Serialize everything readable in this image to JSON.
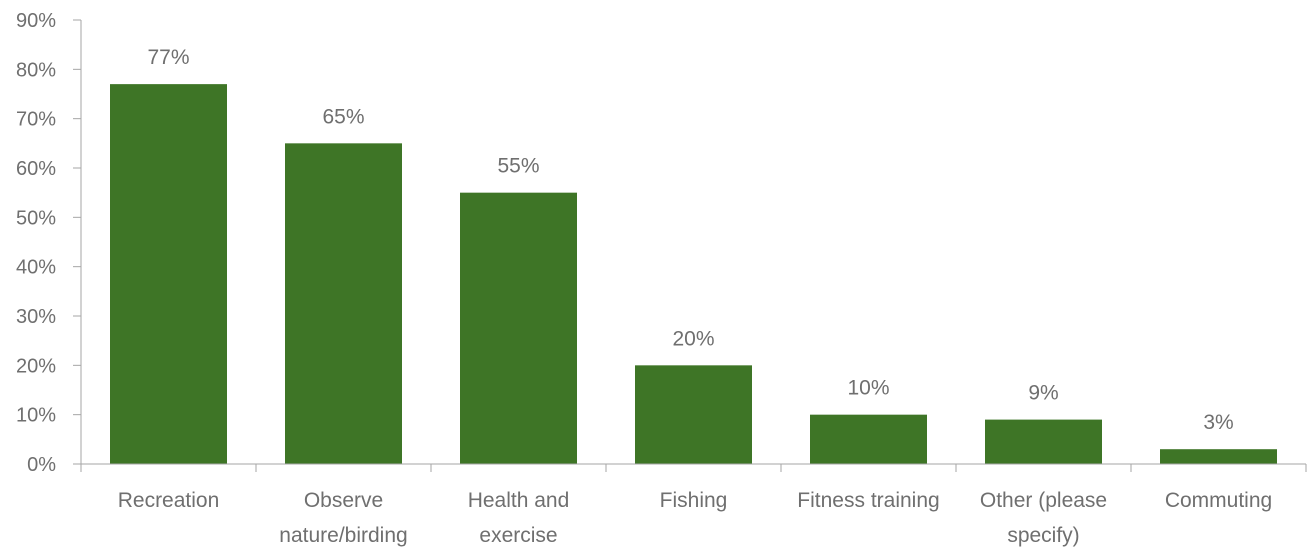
{
  "chart_data": {
    "type": "bar",
    "title": "",
    "xlabel": "",
    "ylabel": "",
    "categories": [
      [
        "Recreation"
      ],
      [
        "Observe",
        "nature/birding"
      ],
      [
        "Health and",
        "exercise"
      ],
      [
        "Fishing"
      ],
      [
        "Fitness training"
      ],
      [
        "Other (please",
        "specify)"
      ],
      [
        "Commuting"
      ]
    ],
    "values": [
      77,
      65,
      55,
      20,
      10,
      9,
      3
    ],
    "data_labels": [
      "77%",
      "65%",
      "55%",
      "20%",
      "10%",
      "9%",
      "3%"
    ],
    "ylim": [
      0,
      90
    ],
    "yticks": [
      0,
      10,
      20,
      30,
      40,
      50,
      60,
      70,
      80,
      90
    ],
    "ytick_labels": [
      "0%",
      "10%",
      "20%",
      "30%",
      "40%",
      "50%",
      "60%",
      "70%",
      "80%",
      "90%"
    ],
    "grid": false,
    "legend": "none",
    "colors": {
      "bar": "#3e7526",
      "axis": "#a6a6a6",
      "text": "#6f6f6f"
    }
  }
}
